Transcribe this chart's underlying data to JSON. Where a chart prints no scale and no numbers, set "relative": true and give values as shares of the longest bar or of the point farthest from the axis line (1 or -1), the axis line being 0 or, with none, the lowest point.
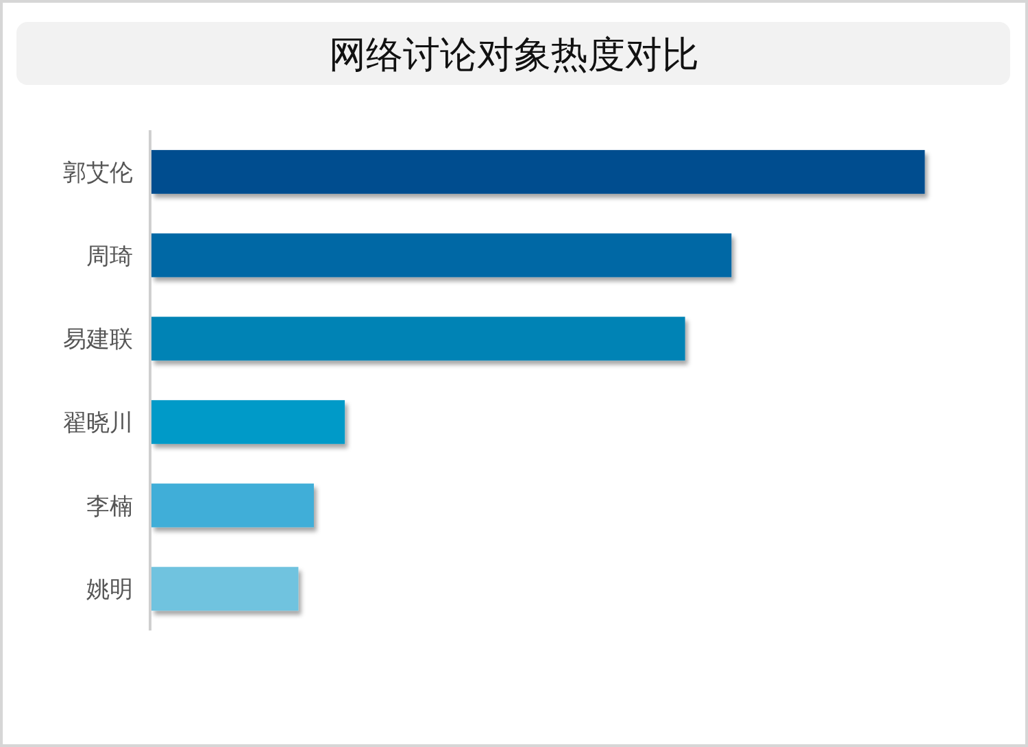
{
  "chart_data": {
    "type": "bar",
    "orientation": "horizontal",
    "relative": true,
    "title": "网络讨论对象热度对比",
    "categories": [
      "郭艾伦",
      "周琦",
      "易建联",
      "翟晓川",
      "李楠",
      "姚明"
    ],
    "values": [
      1,
      0.75,
      0.69,
      0.25,
      0.21,
      0.19
    ],
    "colors": [
      "#004e8f",
      "#0068a5",
      "#0083b5",
      "#009ac8",
      "#40aed8",
      "#6fc3df"
    ]
  }
}
